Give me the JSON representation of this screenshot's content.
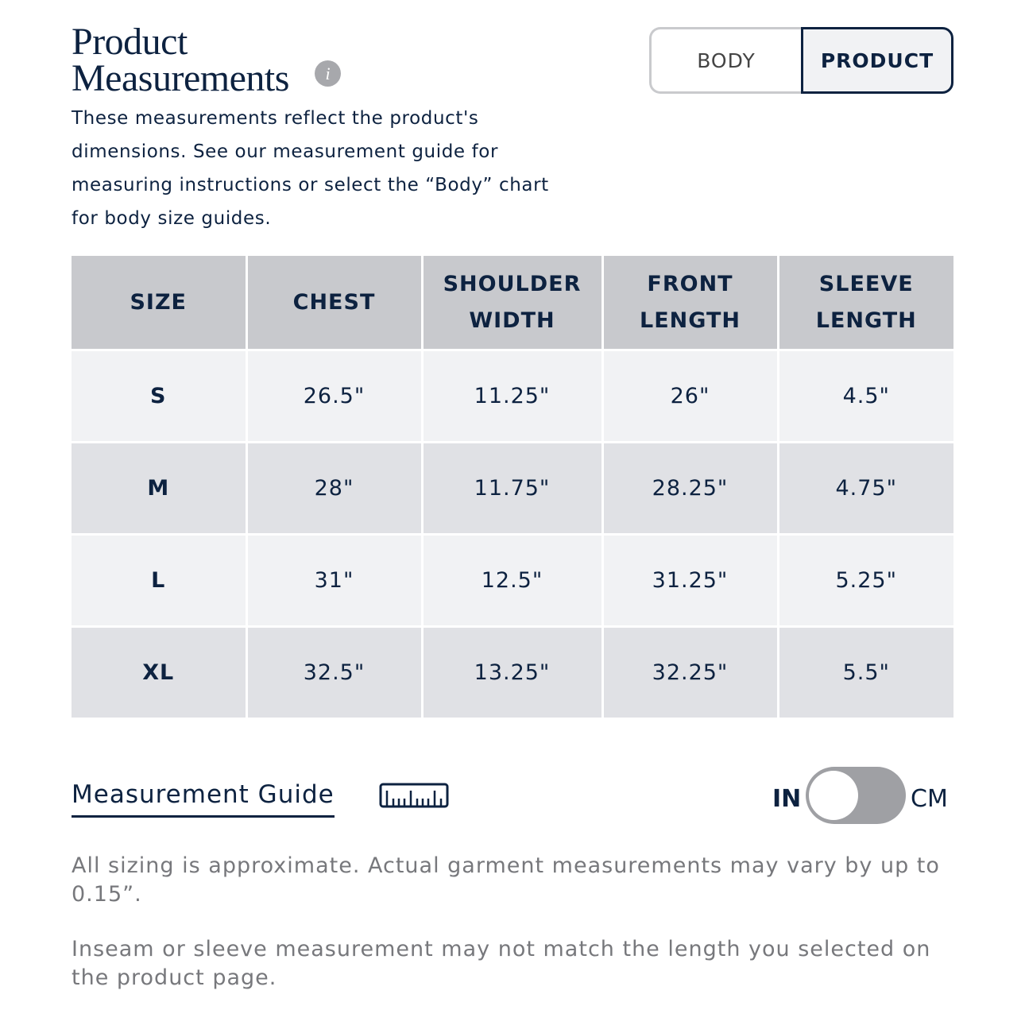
{
  "header": {
    "title_line1": "Product",
    "title_line2": "Measurements",
    "info_icon": "i",
    "description": "These measurements reflect the product's dimensions. See our measurement guide for measuring instructions or select the “Body” chart for body size guides."
  },
  "tabs": {
    "body": "BODY",
    "product": "PRODUCT",
    "active": "PRODUCT"
  },
  "table": {
    "headers": [
      "SIZE",
      "CHEST",
      "SHOULDER WIDTH",
      "FRONT LENGTH",
      "SLEEVE LENGTH"
    ],
    "rows": [
      [
        "S",
        "26.5\"",
        "11.25\"",
        "26\"",
        "4.5\""
      ],
      [
        "M",
        "28\"",
        "11.75\"",
        "28.25\"",
        "4.75\""
      ],
      [
        "L",
        "31\"",
        "12.5\"",
        "31.25\"",
        "5.25\""
      ],
      [
        "XL",
        "32.5\"",
        "13.25\"",
        "32.25\"",
        "5.5\""
      ]
    ]
  },
  "guide": {
    "label": "Measurement Guide",
    "icon": "ruler-icon"
  },
  "units": {
    "left": "IN",
    "right": "CM",
    "selected": "IN"
  },
  "notes": [
    "All sizing is approximate. Actual garment measurements may vary by up to 0.15”.",
    "Inseam or sleeve measurement may not match the length you selected on the product page."
  ],
  "colors": {
    "navy": "#0d2240",
    "header_bg": "#c8c9cd",
    "row_light": "#f1f2f4",
    "row_dark": "#e0e1e5"
  }
}
